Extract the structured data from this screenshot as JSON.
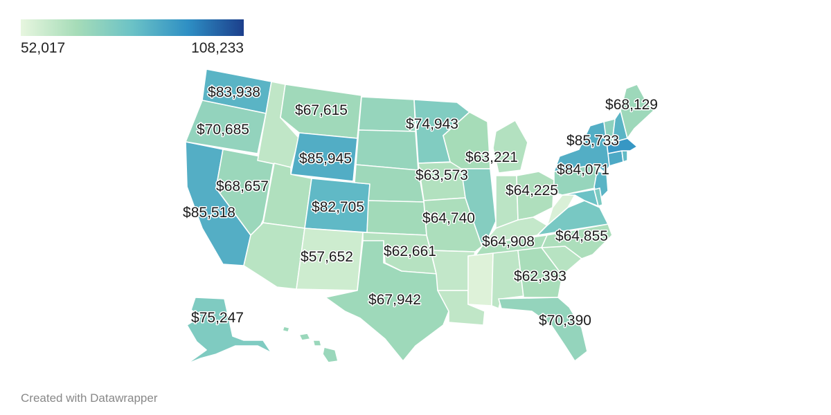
{
  "legend": {
    "min_label": "52,017",
    "max_label": "108,233",
    "min_color": "#e7f6df",
    "max_color": "#1c3f8c"
  },
  "credit": "Created with Datawrapper",
  "map": {
    "region": "United States",
    "scale_min": 52017,
    "scale_max": 108233,
    "labels": [
      "$83,938",
      "$67,615",
      "$70,685",
      "$85,945",
      "$74,943",
      "$68,129",
      "$85,733",
      "$63,221",
      "$63,573",
      "$84,071",
      "$68,657",
      "$64,225",
      "$82,705",
      "$85,518",
      "$64,740",
      "$64,855",
      "$64,908",
      "$57,652",
      "$62,661",
      "$62,393",
      "$67,942",
      "$70,390",
      "$75,247"
    ],
    "states": [
      {
        "id": "WA",
        "value": 83938
      },
      {
        "id": "OR",
        "value": 70685
      },
      {
        "id": "CA",
        "value": 85518
      },
      {
        "id": "NV",
        "value": 68657
      },
      {
        "id": "ID",
        "value": 60500
      },
      {
        "id": "MT",
        "value": 67615
      },
      {
        "id": "WY",
        "value": 85945
      },
      {
        "id": "UT",
        "value": 64000
      },
      {
        "id": "AZ",
        "value": 62000
      },
      {
        "id": "CO",
        "value": 82705
      },
      {
        "id": "NM",
        "value": 57652
      },
      {
        "id": "ND",
        "value": 70000
      },
      {
        "id": "SD",
        "value": 70000
      },
      {
        "id": "NE",
        "value": 68000
      },
      {
        "id": "KS",
        "value": 67000
      },
      {
        "id": "OK",
        "value": 62661
      },
      {
        "id": "TX",
        "value": 67942
      },
      {
        "id": "MN",
        "value": 74943
      },
      {
        "id": "IA",
        "value": 63573
      },
      {
        "id": "MO",
        "value": 64740
      },
      {
        "id": "AR",
        "value": 60000
      },
      {
        "id": "LA",
        "value": 60500
      },
      {
        "id": "WI",
        "value": 66000
      },
      {
        "id": "IL",
        "value": 74000
      },
      {
        "id": "MI",
        "value": 63221
      },
      {
        "id": "IN",
        "value": 61500
      },
      {
        "id": "OH",
        "value": 64225
      },
      {
        "id": "KY",
        "value": 59500
      },
      {
        "id": "TN",
        "value": 64908
      },
      {
        "id": "MS",
        "value": 54000
      },
      {
        "id": "AL",
        "value": 61000
      },
      {
        "id": "GA",
        "value": 65500
      },
      {
        "id": "FL",
        "value": 70390
      },
      {
        "id": "SC",
        "value": 62393
      },
      {
        "id": "NC",
        "value": 64855
      },
      {
        "id": "VA",
        "value": 77000
      },
      {
        "id": "WV",
        "value": 55000
      },
      {
        "id": "PA",
        "value": 70000
      },
      {
        "id": "NY",
        "value": 85733
      },
      {
        "id": "NJ",
        "value": 84071
      },
      {
        "id": "MD",
        "value": 80000
      },
      {
        "id": "DE",
        "value": 76000
      },
      {
        "id": "CT",
        "value": 87000
      },
      {
        "id": "RI",
        "value": 82000
      },
      {
        "id": "MA",
        "value": 92000
      },
      {
        "id": "VT",
        "value": 72000
      },
      {
        "id": "NH",
        "value": 84000
      },
      {
        "id": "ME",
        "value": 68129
      },
      {
        "id": "AK",
        "value": 75247
      },
      {
        "id": "HI",
        "value": 69000
      }
    ]
  }
}
